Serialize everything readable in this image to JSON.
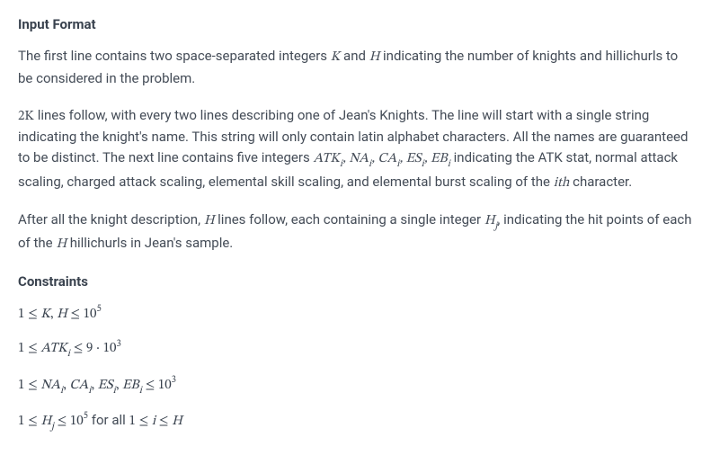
{
  "headings": {
    "input_format": "Input Format",
    "constraints": "Constraints"
  },
  "paragraphs": {
    "p1_a": "The first line contains two space-separated integers ",
    "p1_b": " and ",
    "p1_c": " indicating the number of knights and hillichurls to be considered in the problem.",
    "p2_a": " lines follow, with every two lines describing one of Jean's Knights. The line will start with a single string indicating the knight's name. This string will only contain latin alphabet characters. All the names are guaranteed to be distinct. The next line contains five integers ",
    "p2_b": " indicating the ATK stat, normal attack scaling, charged attack scaling, elemental skill scaling, and elemental burst scaling of the ",
    "p2_c": " character.",
    "p3_a": "After all the knight description, ",
    "p3_b": " lines follow, each containing a single integer ",
    "p3_c": ", indicating the hit points of each of the ",
    "p3_d": " hillichurls in Jean's sample."
  },
  "math": {
    "K": "K",
    "H": "H",
    "twoK": "2K",
    "ATK_i": "ATK",
    "NA_i": "NA",
    "CA_i": "CA",
    "ES_i": "ES",
    "EB_i": "EB",
    "sub_i": "i",
    "sub_j": "j",
    "ith": "ith",
    "H_j": "H",
    "le": "≤",
    "dot": "·",
    "one": "1",
    "nine": "9",
    "comma": ", ",
    "ten": "10",
    "exp5": "5",
    "exp3": "3",
    "for_all": " for all "
  }
}
